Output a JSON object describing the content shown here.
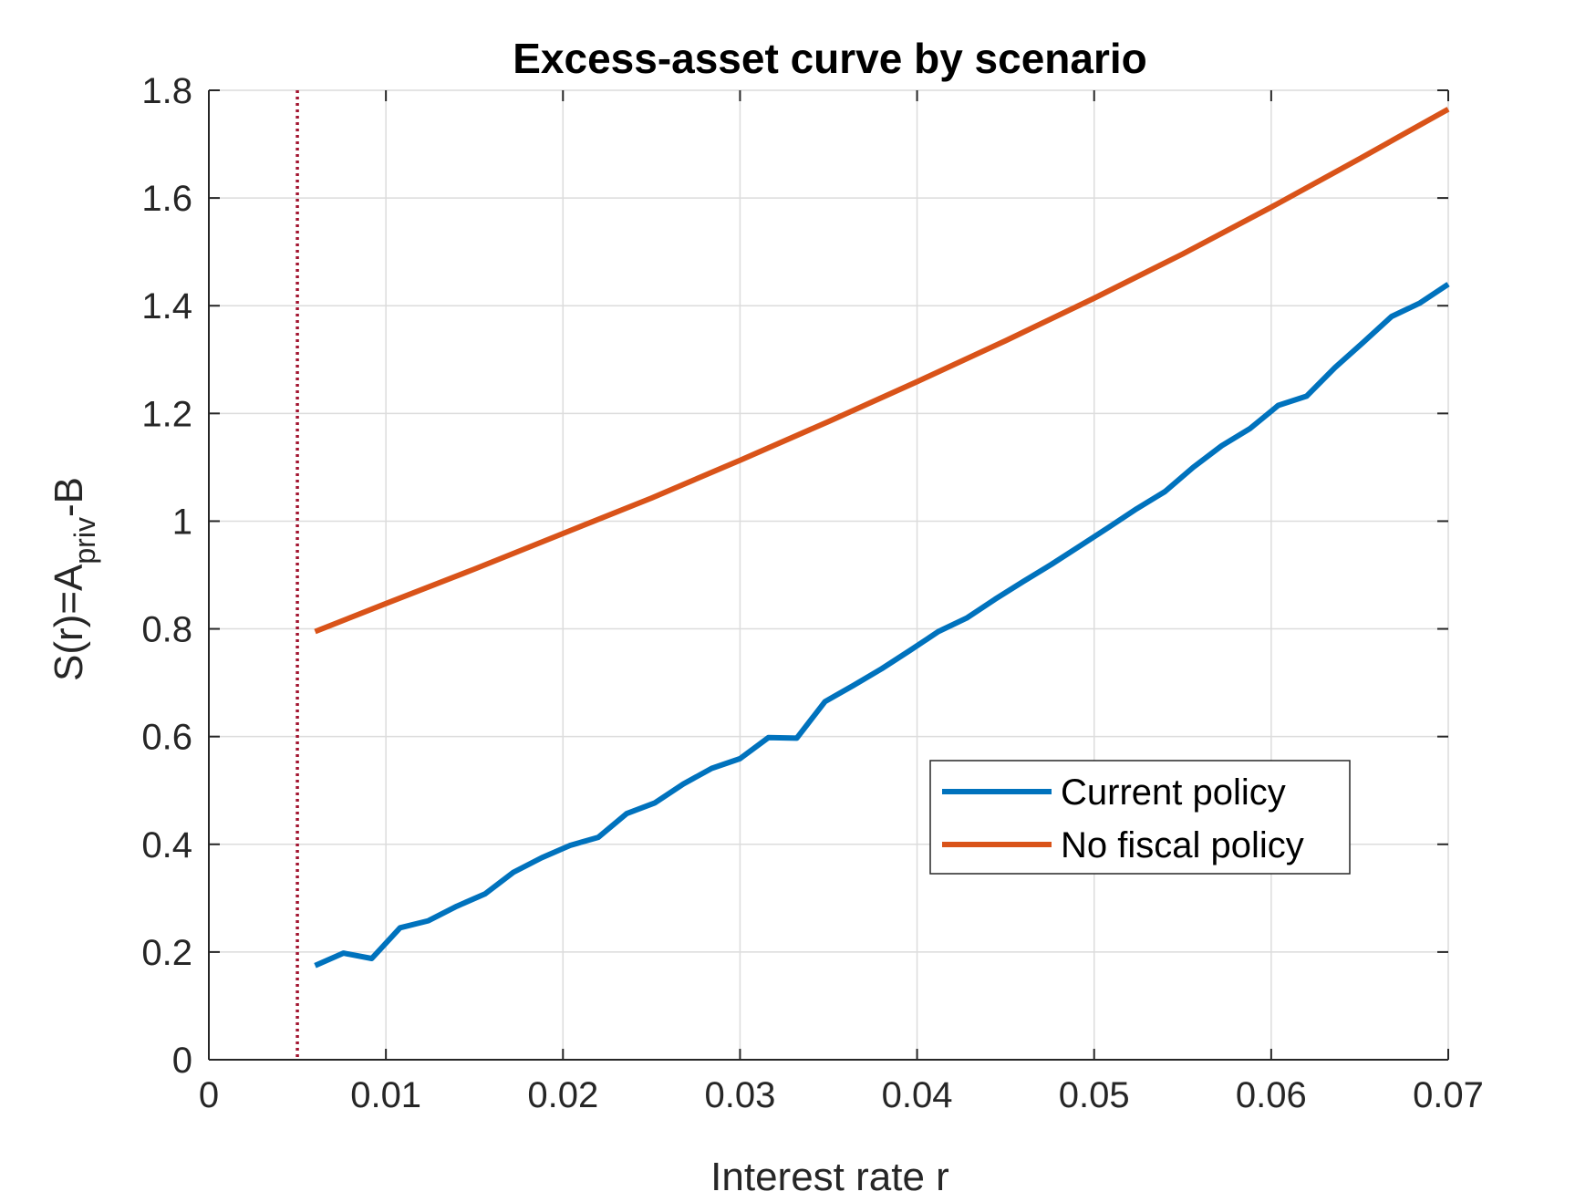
{
  "chart_data": {
    "type": "line",
    "title": "Excess-asset curve by scenario",
    "xlabel": "Interest rate r",
    "ylabel": {
      "base": "S(r)=A",
      "subscript": "priv",
      "suffix": "-B"
    },
    "xlim": [
      0,
      0.07
    ],
    "ylim": [
      0,
      1.8
    ],
    "xticks": [
      0,
      0.01,
      0.02,
      0.03,
      0.04,
      0.05,
      0.06,
      0.07
    ],
    "xtick_labels": [
      "0",
      "0.01",
      "0.02",
      "0.03",
      "0.04",
      "0.05",
      "0.06",
      "0.07"
    ],
    "yticks": [
      0,
      0.2,
      0.4,
      0.6,
      0.8,
      1,
      1.2,
      1.4,
      1.6,
      1.8
    ],
    "ytick_labels": [
      "0",
      "0.2",
      "0.4",
      "0.6",
      "0.8",
      "1",
      "1.2",
      "1.4",
      "1.6",
      "1.8"
    ],
    "grid": true,
    "legend_position": "lower-right",
    "vertical_reference_line": {
      "x": 0.005,
      "style": "dotted",
      "color": "#A2142F"
    },
    "series": [
      {
        "name": "Current policy",
        "color": "#0072BD",
        "x": [
          0.006,
          0.0076,
          0.0092,
          0.0108,
          0.0124,
          0.014,
          0.0156,
          0.0172,
          0.0188,
          0.0204,
          0.022,
          0.0236,
          0.0252,
          0.0268,
          0.0284,
          0.03,
          0.0316,
          0.0332,
          0.0348,
          0.0364,
          0.038,
          0.0396,
          0.0412,
          0.0428,
          0.0444,
          0.046,
          0.0476,
          0.0492,
          0.0508,
          0.0524,
          0.054,
          0.0556,
          0.0572,
          0.0588,
          0.0604,
          0.062,
          0.0636,
          0.0652,
          0.0668,
          0.0684,
          0.07
        ],
        "values": [
          0.175,
          0.198,
          0.188,
          0.245,
          0.258,
          0.285,
          0.308,
          0.348,
          0.375,
          0.398,
          0.413,
          0.457,
          0.477,
          0.512,
          0.541,
          0.559,
          0.598,
          0.597,
          0.665,
          0.695,
          0.726,
          0.76,
          0.795,
          0.82,
          0.855,
          0.888,
          0.92,
          0.954,
          0.988,
          1.023,
          1.055,
          1.1,
          1.14,
          1.172,
          1.215,
          1.232,
          1.285,
          1.332,
          1.38,
          1.405,
          1.44
        ]
      },
      {
        "name": "No fiscal policy",
        "color": "#D95319",
        "x": [
          0.006,
          0.01,
          0.015,
          0.02,
          0.025,
          0.03,
          0.035,
          0.04,
          0.045,
          0.05,
          0.055,
          0.06,
          0.065,
          0.07
        ],
        "values": [
          0.795,
          0.847,
          0.911,
          0.977,
          1.043,
          1.113,
          1.185,
          1.259,
          1.335,
          1.414,
          1.496,
          1.583,
          1.673,
          1.765
        ]
      }
    ]
  },
  "colors": {
    "axis": "#262626",
    "grid": "#dcdcdc",
    "background": "#ffffff"
  }
}
